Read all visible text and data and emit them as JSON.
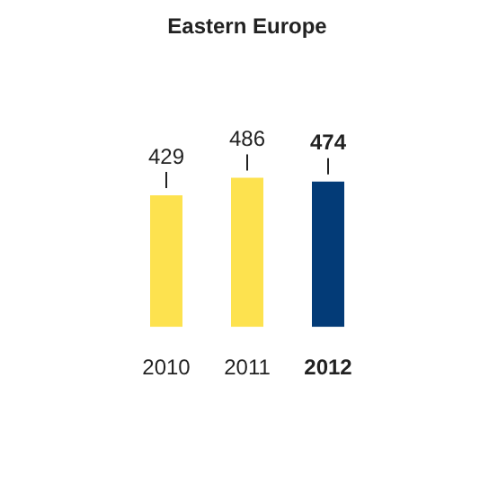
{
  "chart_data": {
    "type": "bar",
    "title": "Eastern Europe",
    "categories": [
      "2010",
      "2011",
      "2012"
    ],
    "values": [
      429,
      486,
      474
    ],
    "colors": [
      "#fde24f",
      "#fde24f",
      "#033b77"
    ],
    "data_labels": true
  }
}
